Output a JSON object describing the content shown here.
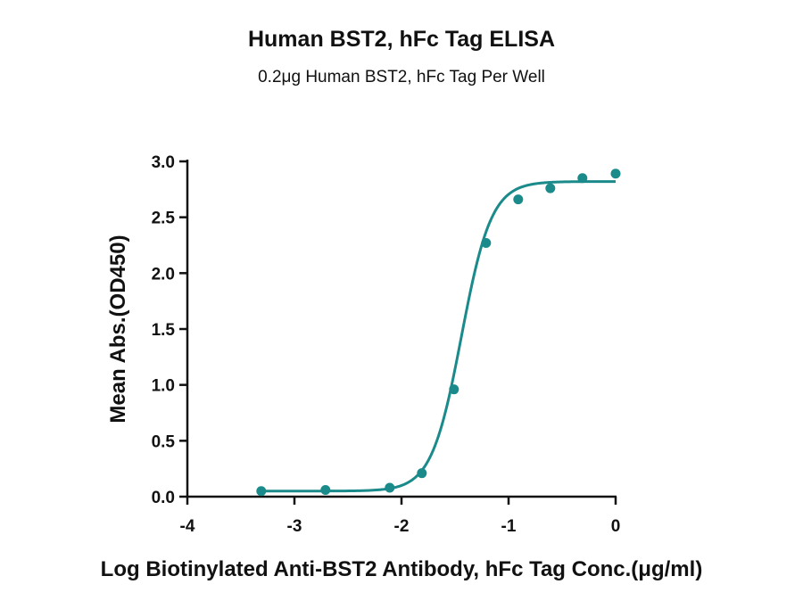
{
  "chart_data": {
    "type": "scatter",
    "title": "Human BST2, hFc Tag ELISA",
    "subtitle": "0.2μg Human BST2, hFc Tag Per Well",
    "xlabel": "Log Biotinylated Anti-BST2 Antibody, hFc Tag Conc.(μg/ml)",
    "ylabel": "Mean Abs.(OD450)",
    "xlim": [
      -4,
      0
    ],
    "ylim": [
      0,
      3.0
    ],
    "x_ticks": [
      -4,
      -3,
      -2,
      -1,
      0
    ],
    "y_ticks": [
      0.0,
      0.5,
      1.0,
      1.5,
      2.0,
      2.5,
      3.0
    ],
    "x_tick_labels": [
      "-4",
      "-3",
      "-2",
      "-1",
      "0"
    ],
    "y_tick_labels": [
      "0.0",
      "0.5",
      "1.0",
      "1.5",
      "2.0",
      "2.5",
      "3.0"
    ],
    "grid": false,
    "color": "#1a8a8a",
    "series": [
      {
        "x": [
          -3.31,
          -2.71,
          -2.11,
          -1.81,
          -1.51,
          -1.21,
          -0.91,
          -0.61,
          -0.31,
          0.0
        ],
        "y": [
          0.05,
          0.06,
          0.08,
          0.21,
          0.96,
          2.27,
          2.66,
          2.76,
          2.85,
          2.89
        ]
      }
    ],
    "fit": {
      "model": "4PL",
      "bottom": 0.05,
      "top": 2.82,
      "logEC50": -1.44,
      "hill": 3.1
    }
  }
}
